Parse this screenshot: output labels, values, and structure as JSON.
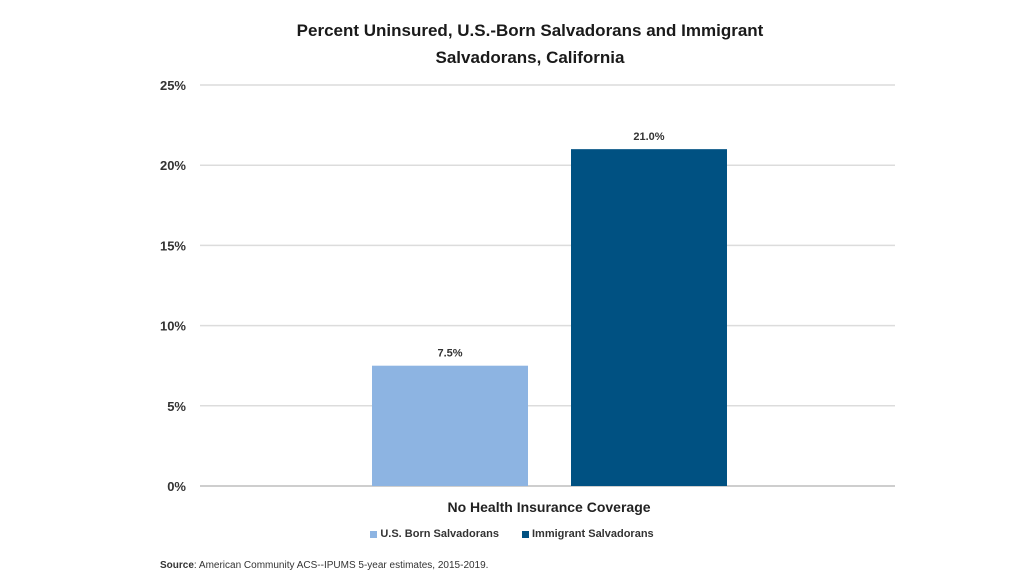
{
  "chart_data": {
    "type": "bar",
    "title": "Percent Uninsured, U.S.-Born Salvadorans and Immigrant Salvadorans, California",
    "title_lines": [
      "Percent Uninsured, U.S.-Born Salvadorans and Immigrant",
      "Salvadorans, California"
    ],
    "categories": [
      "No Health Insurance Coverage"
    ],
    "series": [
      {
        "name": "U.S. Born Salvadorans",
        "values": [
          7.5
        ],
        "label": "7.5%",
        "color": "#8db4e2"
      },
      {
        "name": "Immigrant Salvadorans",
        "values": [
          21.0
        ],
        "label": "21.0%",
        "color": "#005182"
      }
    ],
    "ylim": [
      0,
      25
    ],
    "yticks": [
      0,
      5,
      10,
      15,
      20,
      25
    ],
    "ytick_labels": [
      "0%",
      "5%",
      "10%",
      "15%",
      "20%",
      "25%"
    ],
    "xlabel": "",
    "ylabel": "",
    "grid": true,
    "legend_position": "bottom"
  },
  "source": {
    "label": "Source",
    "text": ": American Community ACS--IPUMS 5-year estimates, 2015-2019."
  }
}
